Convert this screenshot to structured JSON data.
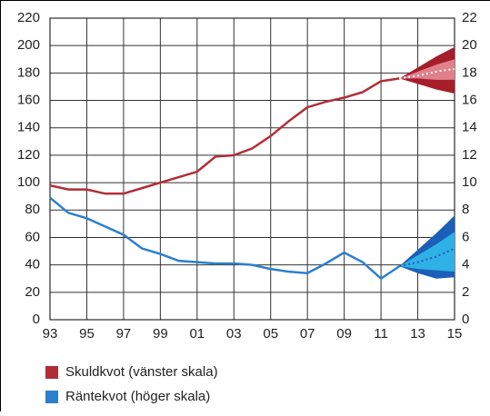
{
  "chart_data": {
    "type": "line",
    "categories": [
      "93",
      null,
      "95",
      null,
      "97",
      null,
      "99",
      null,
      "01",
      null,
      "03",
      null,
      "05",
      null,
      "07",
      null,
      "09",
      null,
      "11",
      null,
      "13",
      null,
      "15"
    ],
    "ylim": [
      0,
      220
    ],
    "yticks": [
      0,
      20,
      40,
      60,
      80,
      100,
      120,
      140,
      160,
      180,
      200,
      220
    ],
    "y2lim": [
      0,
      22
    ],
    "y2ticks": [
      0,
      2,
      4,
      6,
      8,
      10,
      12,
      14,
      16,
      18,
      20,
      22
    ],
    "grid": true,
    "series": [
      {
        "name": "Skuldkvot (vänster skala)",
        "color": "#b22d36",
        "axis": "y",
        "values": [
          98,
          95,
          95,
          92,
          92,
          96,
          100,
          104,
          108,
          119,
          120,
          125,
          134,
          145,
          155,
          159,
          162,
          166,
          174,
          176,
          null,
          null,
          null
        ],
        "forecast": [
          null,
          null,
          null,
          null,
          null,
          null,
          null,
          null,
          null,
          null,
          null,
          null,
          null,
          null,
          null,
          null,
          null,
          null,
          null,
          176,
          178,
          181,
          183
        ],
        "band_outer": {
          "upper": [
            null,
            null,
            null,
            null,
            null,
            null,
            null,
            null,
            null,
            null,
            null,
            null,
            null,
            null,
            null,
            null,
            null,
            null,
            null,
            176,
            184,
            192,
            199
          ],
          "lower": [
            null,
            null,
            null,
            null,
            null,
            null,
            null,
            null,
            null,
            null,
            null,
            null,
            null,
            null,
            null,
            null,
            null,
            null,
            null,
            176,
            172,
            168,
            165
          ]
        },
        "band_inner": {
          "upper": [
            null,
            null,
            null,
            null,
            null,
            null,
            null,
            null,
            null,
            null,
            null,
            null,
            null,
            null,
            null,
            null,
            null,
            null,
            null,
            176,
            181,
            186,
            190
          ],
          "lower": [
            null,
            null,
            null,
            null,
            null,
            null,
            null,
            null,
            null,
            null,
            null,
            null,
            null,
            null,
            null,
            null,
            null,
            null,
            null,
            176,
            176,
            175,
            175
          ]
        },
        "band_colors": [
          "#a61e2b",
          "#e0808c"
        ]
      },
      {
        "name": "Räntekvot (höger skala)",
        "color": "#2a7fd0",
        "axis": "y2",
        "values": [
          8.9,
          7.8,
          7.4,
          6.8,
          6.2,
          5.2,
          4.8,
          4.3,
          4.2,
          4.1,
          4.1,
          4.0,
          3.7,
          3.5,
          3.4,
          4.1,
          4.9,
          4.2,
          3.0,
          3.9,
          null,
          null,
          null
        ],
        "forecast": [
          null,
          null,
          null,
          null,
          null,
          null,
          null,
          null,
          null,
          null,
          null,
          null,
          null,
          null,
          null,
          null,
          null,
          null,
          null,
          3.9,
          4.2,
          4.6,
          5.2
        ],
        "band_outer": {
          "upper": [
            null,
            null,
            null,
            null,
            null,
            null,
            null,
            null,
            null,
            null,
            null,
            null,
            null,
            null,
            null,
            null,
            null,
            null,
            null,
            3.9,
            5.1,
            6.3,
            7.6
          ],
          "lower": [
            null,
            null,
            null,
            null,
            null,
            null,
            null,
            null,
            null,
            null,
            null,
            null,
            null,
            null,
            null,
            null,
            null,
            null,
            null,
            3.9,
            3.4,
            3.0,
            3.1
          ]
        },
        "band_inner": {
          "upper": [
            null,
            null,
            null,
            null,
            null,
            null,
            null,
            null,
            null,
            null,
            null,
            null,
            null,
            null,
            null,
            null,
            null,
            null,
            null,
            3.9,
            4.7,
            5.5,
            6.4
          ],
          "lower": [
            null,
            null,
            null,
            null,
            null,
            null,
            null,
            null,
            null,
            null,
            null,
            null,
            null,
            null,
            null,
            null,
            null,
            null,
            null,
            3.9,
            3.7,
            3.6,
            3.5
          ]
        },
        "band_colors": [
          "#1a5fb8",
          "#2fb0e6"
        ]
      }
    ]
  }
}
